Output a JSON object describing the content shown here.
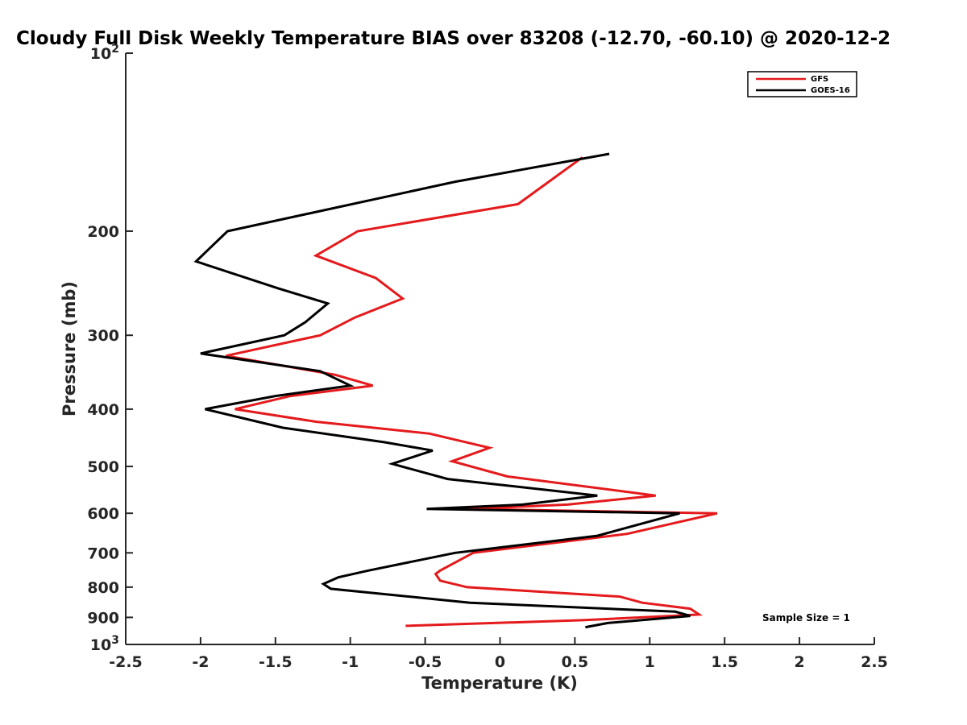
{
  "chart_data": {
    "type": "line",
    "title": "Cloudy Full Disk Weekly Temperature BIAS over 83208 (-12.70, -60.10) @ 2020-12-2",
    "xlabel": "Temperature (K)",
    "ylabel": "Pressure (mb)",
    "xlim": [
      -2.5,
      2.5
    ],
    "ylim": [
      1000,
      100
    ],
    "yscale": "log",
    "x_ticks": [
      "-2.5",
      "-2",
      "-1.5",
      "-1",
      "-0.5",
      "0",
      "0.5",
      "1",
      "1.5",
      "2",
      "2.5"
    ],
    "y_ticks": [
      {
        "value": 100,
        "label": "10",
        "sup": "2"
      },
      {
        "value": 200,
        "label": "200",
        "sup": ""
      },
      {
        "value": 300,
        "label": "300",
        "sup": ""
      },
      {
        "value": 400,
        "label": "400",
        "sup": ""
      },
      {
        "value": 500,
        "label": "500",
        "sup": ""
      },
      {
        "value": 600,
        "label": "600",
        "sup": ""
      },
      {
        "value": 700,
        "label": "700",
        "sup": ""
      },
      {
        "value": 800,
        "label": "800",
        "sup": ""
      },
      {
        "value": 900,
        "label": "900",
        "sup": ""
      },
      {
        "value": 1000,
        "label": "10",
        "sup": "3"
      }
    ],
    "legend_position": "top-right",
    "grid": false,
    "series": [
      {
        "name": "GFS",
        "color": "#e41a1c",
        "points": [
          [
            0.55,
            150
          ],
          [
            0.12,
            180
          ],
          [
            -0.95,
            200
          ],
          [
            -1.23,
            220
          ],
          [
            -0.83,
            240
          ],
          [
            -0.65,
            260
          ],
          [
            -0.97,
            280
          ],
          [
            -1.2,
            300
          ],
          [
            -1.83,
            325
          ],
          [
            -1.1,
            350
          ],
          [
            -0.85,
            365
          ],
          [
            -1.4,
            380
          ],
          [
            -1.77,
            400
          ],
          [
            -1.23,
            420
          ],
          [
            -0.47,
            440
          ],
          [
            -0.07,
            465
          ],
          [
            -0.32,
            490
          ],
          [
            0.05,
            520
          ],
          [
            1.04,
            560
          ],
          [
            0.45,
            580
          ],
          [
            -0.23,
            590
          ],
          [
            1.45,
            600
          ],
          [
            0.85,
            650
          ],
          [
            -0.18,
            700
          ],
          [
            -0.4,
            750
          ],
          [
            -0.43,
            760
          ],
          [
            -0.4,
            780
          ],
          [
            -0.22,
            800
          ],
          [
            0.8,
            830
          ],
          [
            0.95,
            850
          ],
          [
            1.27,
            870
          ],
          [
            1.33,
            890
          ],
          [
            0.55,
            910
          ],
          [
            -0.63,
            930
          ]
        ]
      },
      {
        "name": "GOES-16",
        "color": "#000000",
        "points": [
          [
            0.73,
            148
          ],
          [
            -0.3,
            165
          ],
          [
            -1.82,
            200
          ],
          [
            -2.03,
            225
          ],
          [
            -1.48,
            250
          ],
          [
            -1.15,
            265
          ],
          [
            -1.3,
            285
          ],
          [
            -1.44,
            300
          ],
          [
            -2.0,
            322
          ],
          [
            -1.2,
            345
          ],
          [
            -1.0,
            365
          ],
          [
            -1.5,
            380
          ],
          [
            -1.97,
            400
          ],
          [
            -1.45,
            430
          ],
          [
            -0.77,
            455
          ],
          [
            -0.45,
            470
          ],
          [
            -0.72,
            495
          ],
          [
            -0.35,
            525
          ],
          [
            0.65,
            560
          ],
          [
            0.15,
            580
          ],
          [
            -0.49,
            590
          ],
          [
            1.2,
            600
          ],
          [
            0.65,
            655
          ],
          [
            -0.3,
            700
          ],
          [
            -0.88,
            750
          ],
          [
            -1.08,
            770
          ],
          [
            -1.18,
            790
          ],
          [
            -1.13,
            805
          ],
          [
            -0.2,
            850
          ],
          [
            1.17,
            880
          ],
          [
            1.27,
            895
          ],
          [
            0.72,
            920
          ],
          [
            0.57,
            935
          ]
        ]
      }
    ],
    "annotations": [
      {
        "text": "Sample Size = 1"
      }
    ]
  }
}
